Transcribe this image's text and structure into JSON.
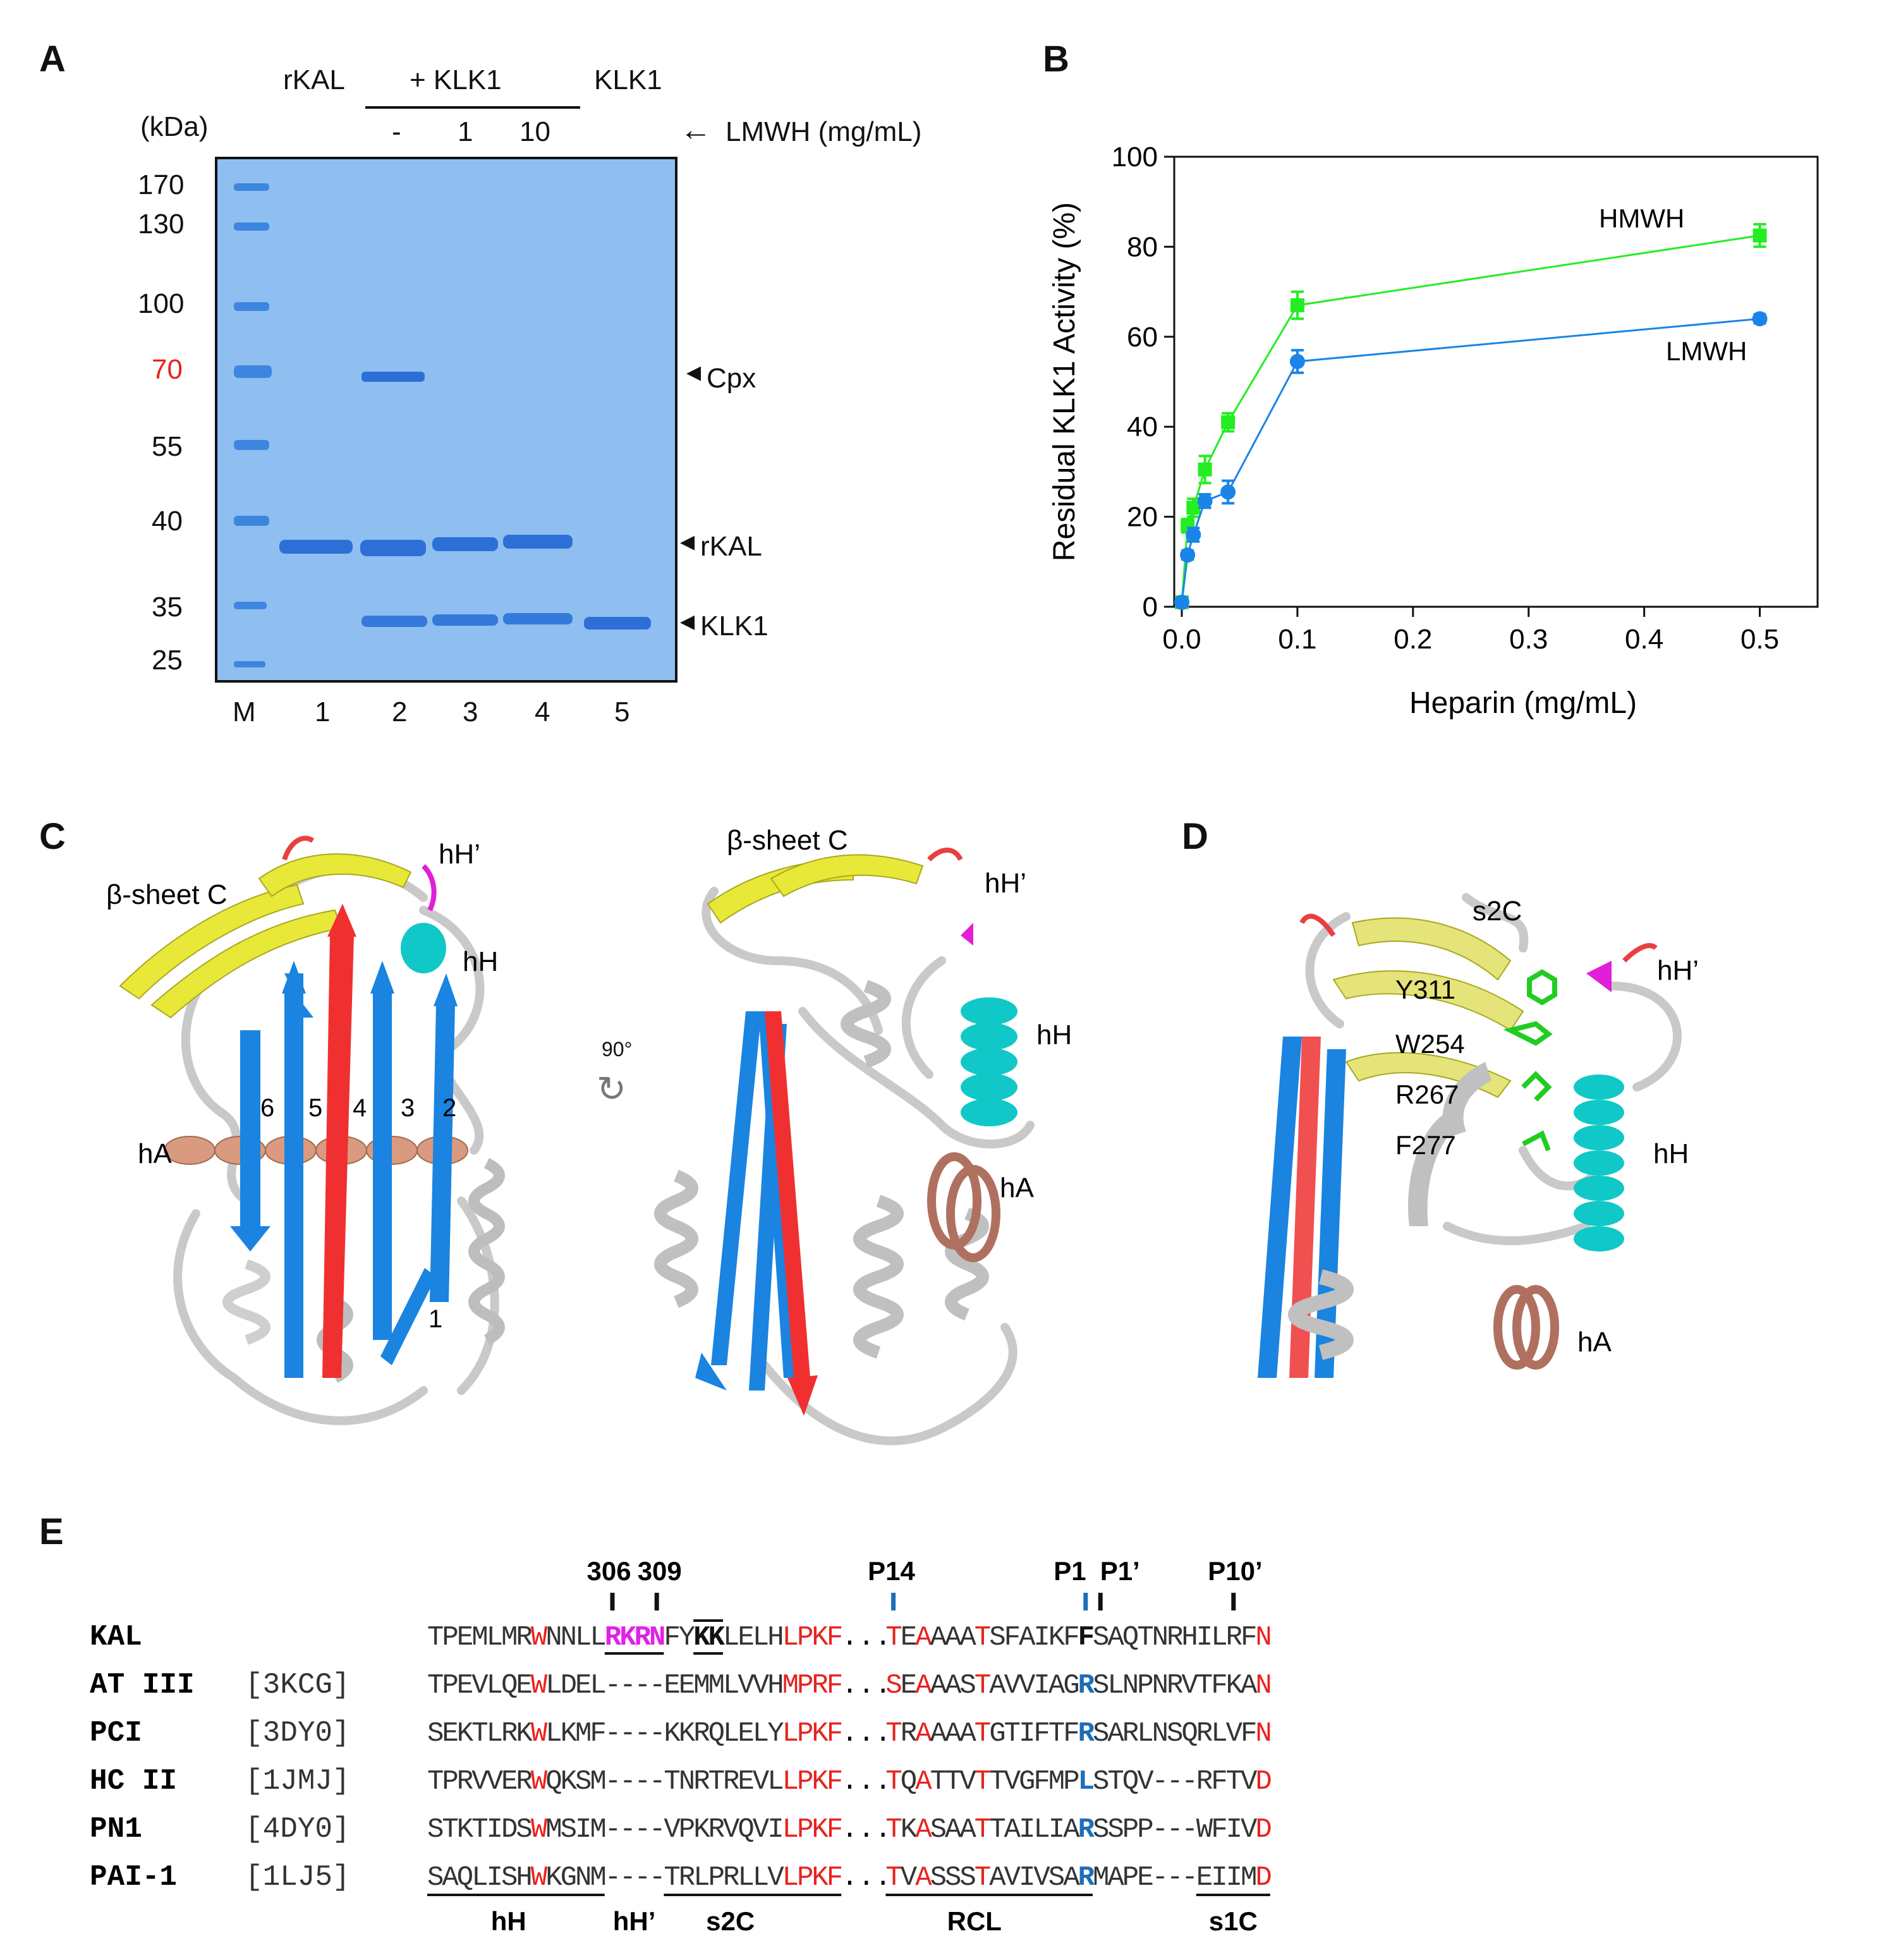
{
  "panels": {
    "a": "A",
    "b": "B",
    "c": "C",
    "d": "D",
    "e": "E"
  },
  "gel": {
    "top_labels": {
      "rkal": "rKAL",
      "plus_klk1": "+ KLK1",
      "klk1": "KLK1"
    },
    "lmwh_doses": [
      "-",
      "1",
      "10"
    ],
    "lmwh_label": "LMWH (mg/mL)",
    "kda_label": "(kDa)",
    "marker_sizes": [
      "170",
      "130",
      "100",
      "70",
      "55",
      "40",
      "35",
      "25"
    ],
    "marker_highlight": "70",
    "highlight_color": "#e8221c",
    "band_labels": {
      "cpx": "Cpx",
      "rkal": "rKAL",
      "klk1": "KLK1"
    },
    "lanes": [
      "M",
      "1",
      "2",
      "3",
      "4",
      "5"
    ],
    "gel_color": "#8fbff0",
    "band_color": "#2d6fd6"
  },
  "chart_data": {
    "type": "line",
    "title": "",
    "xlabel": "Heparin (mg/mL)",
    "ylabel": "Residual KLK1 Activity (%)",
    "xlim": [
      0,
      0.55
    ],
    "ylim": [
      0,
      100
    ],
    "xticks": [
      "0.0",
      "0.1",
      "0.2",
      "0.3",
      "0.4",
      "0.5"
    ],
    "yticks": [
      "0",
      "20",
      "40",
      "60",
      "80",
      "100"
    ],
    "series": [
      {
        "name": "HMWH",
        "color": "#22ee22",
        "x": [
          0,
          0.005,
          0.01,
          0.02,
          0.04,
          0.1,
          0.5
        ],
        "y": [
          1,
          18,
          22,
          30.5,
          41,
          67,
          82.5
        ],
        "err": [
          1,
          1.5,
          2,
          3,
          2,
          3,
          2.5
        ]
      },
      {
        "name": "LMWH",
        "color": "#1a84e8",
        "x": [
          0,
          0.005,
          0.01,
          0.02,
          0.04,
          0.1,
          0.5
        ],
        "y": [
          1,
          11.5,
          16,
          23.5,
          25.5,
          54.5,
          64
        ],
        "err": [
          1,
          1,
          1.5,
          1.5,
          2.5,
          2.5,
          1
        ]
      }
    ]
  },
  "structure_c": {
    "left_labels": {
      "sheet": "β-sheet C",
      "hh_prime": "hH’",
      "hh": "hH",
      "ha": "hA",
      "strands": [
        "6",
        "5",
        "4",
        "3",
        "2"
      ],
      "strand1": "1"
    },
    "rotation": "90°",
    "right_labels": {
      "sheet": "β-sheet C",
      "hh_prime": "hH’",
      "hh": "hH",
      "ha": "hA"
    }
  },
  "structure_d": {
    "labels": {
      "s2c": "s2C",
      "hh_prime": "hH’",
      "hh": "hH",
      "ha": "hA"
    },
    "residues": [
      "Y311",
      "W254",
      "R267",
      "F277"
    ]
  },
  "alignment": {
    "markers": {
      "m306": "306",
      "m309": "309",
      "p14": "P14",
      "p1": "P1",
      "p1p": "P1’",
      "p10p": "P10’"
    },
    "rows": [
      {
        "name": "KAL",
        "pdb": "",
        "seq1": "TPEMLMRWNNLLRKRNFYKKLELHLPKF",
        "seq2": "TEAAAATSFAIKFFSAQTNRHILRFN"
      },
      {
        "name": "AT III",
        "pdb": "[3KCG]",
        "seq1": "TPEVLQEWLDEL----EEMMLVVHMPRF",
        "seq2": "SEAAASTAVVIAGRSLNPNRVTFKAN"
      },
      {
        "name": "PCI",
        "pdb": "[3DY0]",
        "seq1": "SEKTLRKWLKMF----KKRQLELYLPKF",
        "seq2": "TRAAAATGTIFTFRSARLNSQRLVFN"
      },
      {
        "name": "HC II",
        "pdb": "[1JMJ]",
        "seq1": "TPRVVERWQKSM----TNRTREVLLPKF",
        "seq2": "TQATTVTTVGFMPLSTQV---RFTVD"
      },
      {
        "name": "PN1",
        "pdb": "[4DY0]",
        "seq1": "STKTIDSWMSIM----VPKRVQVILPKF",
        "seq2": "TKASAATTAILIARSSPP---WFIVD"
      },
      {
        "name": "PAI-1",
        "pdb": "[1LJ5]",
        "seq1": "SAQLISHWKGNM----TRLPRLLVLPKF",
        "seq2": "TVASSSTAVIVSARMAPE---EIIMD"
      }
    ],
    "gap": "...",
    "regions": [
      "hH",
      "hH’",
      "s2C",
      "RCL",
      "s1C"
    ],
    "colors": {
      "conserved": "#e8221c",
      "heparin": "#e022e8",
      "p1": "#1a6fb8"
    }
  }
}
